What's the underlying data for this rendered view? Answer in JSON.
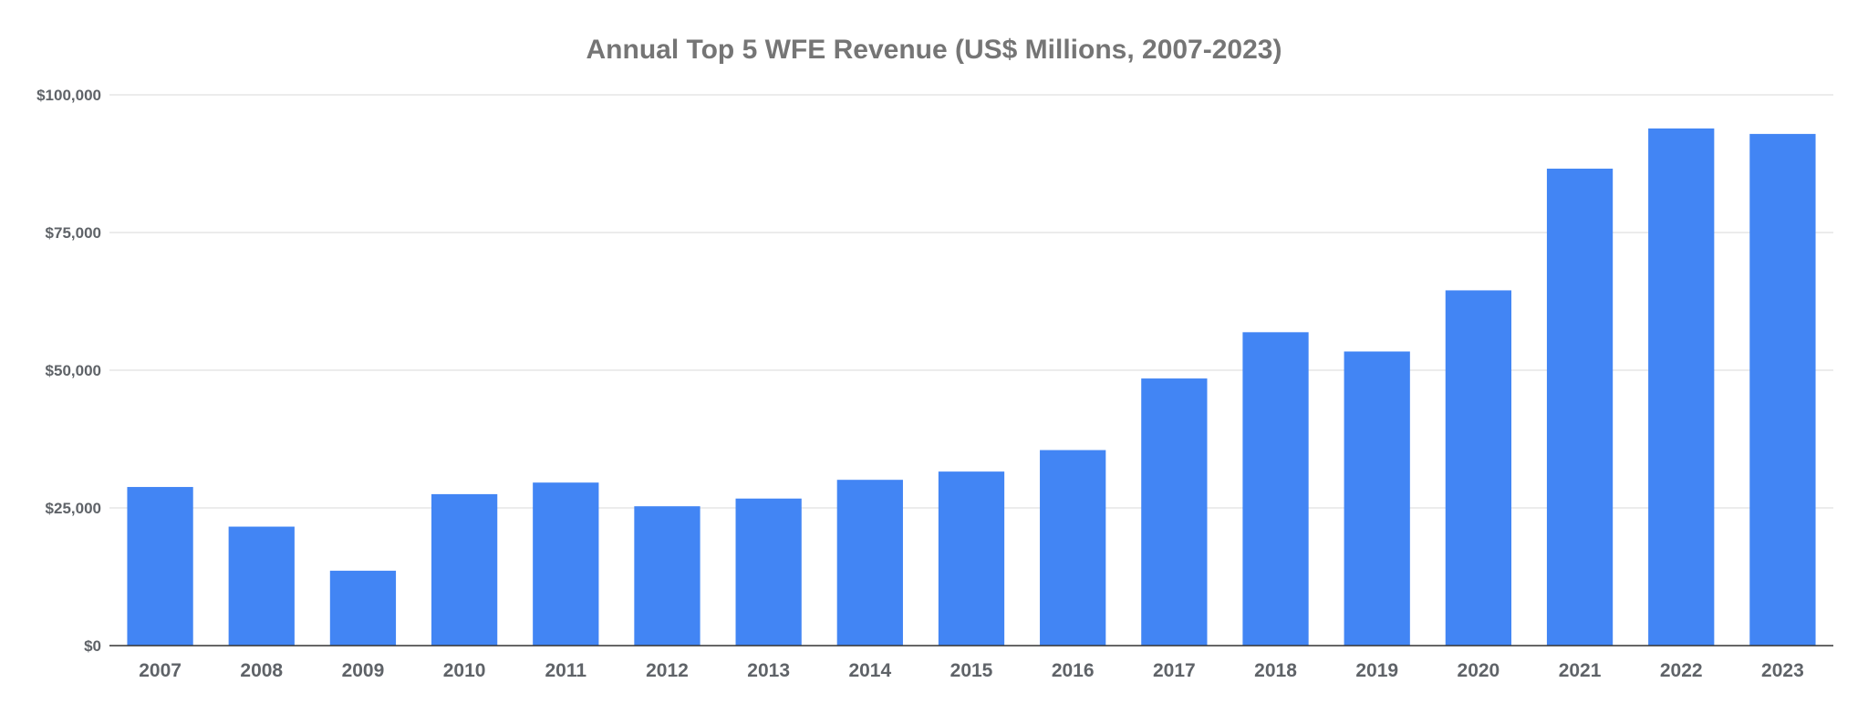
{
  "chart_data": {
    "type": "bar",
    "title": "Annual Top 5 WFE Revenue (US$ Millions, 2007-2023)",
    "xlabel": "",
    "ylabel": "",
    "categories": [
      "2007",
      "2008",
      "2009",
      "2010",
      "2011",
      "2012",
      "2013",
      "2014",
      "2015",
      "2016",
      "2017",
      "2018",
      "2019",
      "2020",
      "2021",
      "2022",
      "2023"
    ],
    "series": [
      {
        "values": [
          28800,
          21600,
          13600,
          27500,
          29600,
          25300,
          26700,
          30100,
          31600,
          35500,
          48500,
          56900,
          53400,
          64500,
          86600,
          93900,
          92900
        ],
        "color": "#4285f4"
      }
    ],
    "ylim": [
      0,
      100000
    ],
    "yticks": [
      0,
      25000,
      50000,
      75000,
      100000
    ],
    "ytick_labels": [
      "$0",
      "$25,000",
      "$50,000",
      "$75,000",
      "$100,000"
    ],
    "grid": true,
    "legend": "none",
    "colors": {
      "bar": "#4285f4",
      "gridline": "#d9d9d9",
      "axis": "#333333",
      "title": "#757575",
      "tick_label": "#5f6368"
    }
  }
}
